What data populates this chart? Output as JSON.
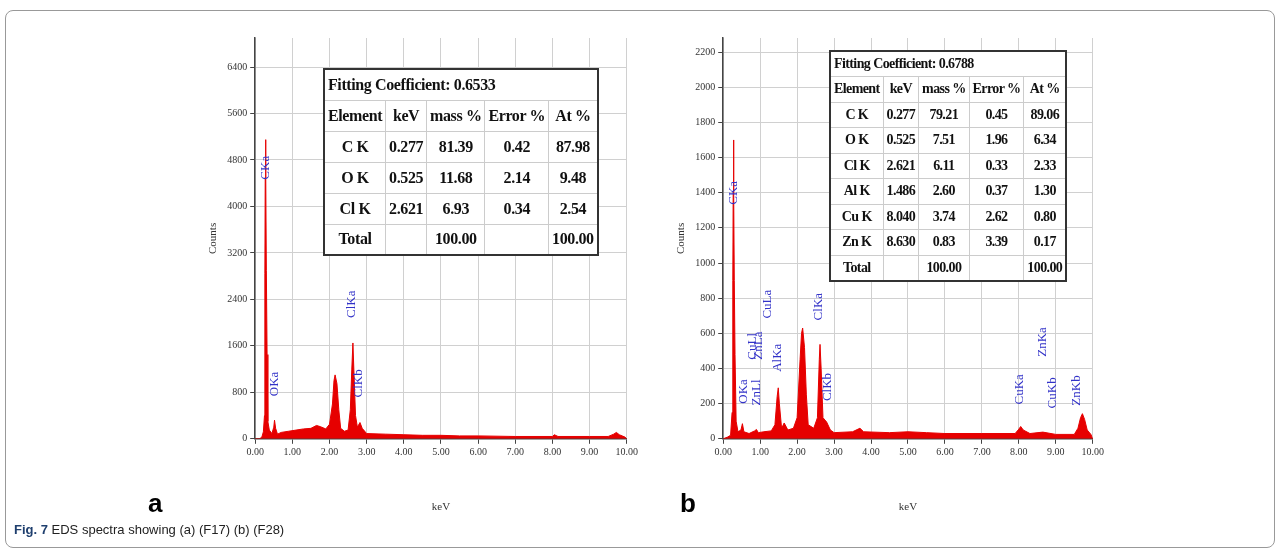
{
  "chart_data": [
    {
      "type": "area",
      "xlabel": "keV",
      "ylabel": "Counts",
      "xlim": [
        0,
        10
      ],
      "ylim": [
        0,
        6900
      ],
      "xticks": [
        {
          "value": 0,
          "label": "0.00"
        },
        {
          "value": 1,
          "label": "1.00"
        },
        {
          "value": 2,
          "label": "2.00"
        },
        {
          "value": 3,
          "label": "3.00"
        },
        {
          "value": 4,
          "label": "4.00"
        },
        {
          "value": 5,
          "label": "5.00"
        },
        {
          "value": 6,
          "label": "6.00"
        },
        {
          "value": 7,
          "label": "7.00"
        },
        {
          "value": 8,
          "label": "8.00"
        },
        {
          "value": 9,
          "label": "9.00"
        },
        {
          "value": 10,
          "label": "10.00"
        }
      ],
      "yticks": [
        0,
        800,
        1600,
        2400,
        3200,
        4000,
        4800,
        5600,
        6400
      ],
      "grid": true,
      "series": [
        {
          "color": "#e60000",
          "x": [
            0,
            0.12,
            0.18,
            0.22,
            0.25,
            0.26,
            0.27,
            0.277,
            0.29,
            0.3,
            0.32,
            0.34,
            0.38,
            0.45,
            0.5,
            0.52,
            0.55,
            0.6,
            0.7,
            0.9,
            1.1,
            1.3,
            1.5,
            1.65,
            1.75,
            1.9,
            2.0,
            2.08,
            2.12,
            2.15,
            2.2,
            2.25,
            2.3,
            2.4,
            2.5,
            2.56,
            2.6,
            2.63,
            2.66,
            2.7,
            2.75,
            2.82,
            2.88,
            3.0,
            3.5,
            4.0,
            4.5,
            5.0,
            5.5,
            6.0,
            7.0,
            8.0,
            8.05,
            8.15,
            9.0,
            9.5,
            9.65,
            9.72,
            9.8,
            9.95,
            10
          ],
          "values": [
            0,
            0,
            30,
            120,
            400,
            2850,
            4500,
            5150,
            4600,
            2900,
            1450,
            300,
            150,
            90,
            200,
            320,
            180,
            80,
            110,
            130,
            150,
            170,
            180,
            230,
            210,
            170,
            250,
            600,
            1000,
            1100,
            950,
            500,
            180,
            130,
            150,
            500,
            1200,
            1650,
            1100,
            400,
            200,
            280,
            180,
            90,
            80,
            70,
            60,
            60,
            50,
            50,
            40,
            40,
            70,
            40,
            40,
            40,
            80,
            110,
            70,
            30,
            0
          ]
        }
      ],
      "annotations": [
        "a",
        "Fitting Coefficient: 0.6533",
        "Element\tkeV\tmass %\tError %\tAt %",
        "C K\t0.277\t81.39\t0.42\t87.98",
        "O K\t0.525\t11.68\t2.14\t9.48",
        "Cl K\t2.621\t6.93\t0.34\t2.54",
        "Total\t\t100.00\t\t100.00",
        {
          "text": "CKa",
          "x": 0.277,
          "y": 5150
        },
        {
          "text": "OKa",
          "x": 0.52,
          "y": 320
        },
        {
          "text": "ClKa",
          "x": 2.63,
          "y": 1650
        },
        {
          "text": "ClKb",
          "x": 2.82,
          "y": 280
        }
      ]
    },
    {
      "type": "area",
      "xlabel": "keV",
      "ylabel": "Counts",
      "xlim": [
        0,
        10
      ],
      "ylim": [
        0,
        2280
      ],
      "xticks": [
        {
          "value": 0,
          "label": "0.00"
        },
        {
          "value": 1,
          "label": "1.00"
        },
        {
          "value": 2,
          "label": "2.00"
        },
        {
          "value": 3,
          "label": "3.00"
        },
        {
          "value": 4,
          "label": "4.00"
        },
        {
          "value": 5,
          "label": "5.00"
        },
        {
          "value": 6,
          "label": "6.00"
        },
        {
          "value": 7,
          "label": "7.00"
        },
        {
          "value": 8,
          "label": "8.00"
        },
        {
          "value": 9,
          "label": "9.00"
        },
        {
          "value": 10,
          "label": "10.00"
        }
      ],
      "yticks": [
        0,
        200,
        400,
        600,
        800,
        1000,
        1200,
        1400,
        1600,
        1800,
        2000,
        2200
      ],
      "grid": true,
      "series": [
        {
          "color": "#e60000",
          "x": [
            0,
            0.12,
            0.2,
            0.24,
            0.26,
            0.27,
            0.277,
            0.29,
            0.3,
            0.32,
            0.35,
            0.4,
            0.48,
            0.52,
            0.56,
            0.7,
            0.85,
            0.9,
            0.95,
            1.1,
            1.3,
            1.4,
            1.46,
            1.49,
            1.52,
            1.58,
            1.65,
            1.75,
            1.9,
            2.0,
            2.08,
            2.12,
            2.15,
            2.2,
            2.25,
            2.3,
            2.45,
            2.55,
            2.6,
            2.62,
            2.65,
            2.7,
            2.8,
            2.9,
            3.0,
            3.5,
            3.7,
            3.8,
            4.5,
            5.0,
            5.5,
            6.0,
            7.0,
            7.9,
            8.0,
            8.05,
            8.12,
            8.3,
            8.65,
            9.0,
            9.5,
            9.6,
            9.67,
            9.72,
            9.78,
            9.85,
            9.95,
            10
          ],
          "values": [
            0,
            10,
            20,
            150,
            900,
            1400,
            1700,
            1400,
            900,
            480,
            100,
            40,
            50,
            86,
            40,
            30,
            45,
            53,
            35,
            40,
            45,
            80,
            240,
            290,
            200,
            60,
            90,
            50,
            60,
            120,
            450,
            600,
            630,
            520,
            250,
            80,
            60,
            120,
            450,
            537,
            400,
            120,
            95,
            50,
            35,
            40,
            60,
            40,
            35,
            40,
            35,
            30,
            30,
            30,
            55,
            70,
            50,
            30,
            38,
            25,
            25,
            60,
            120,
            143,
            110,
            50,
            25,
            0
          ]
        }
      ],
      "annotations": [
        "b",
        "CuLl",
        "ZnLa",
        "CuLa",
        "ZnKa",
        "Fitting Coefficient: 0.6788",
        "Element\tkeV\tmass %\tError %\tAt %",
        "C K\t0.277\t79.21\t0.45\t89.06",
        "O K\t0.525\t7.51\t1.96\t6.34",
        "Cl K\t2.621\t6.11\t0.33\t2.33",
        "Al K\t1.486\t2.60\t0.37\t1.30",
        "Cu K\t8.040\t3.74\t2.62\t0.80",
        "Zn K\t8.630\t0.83\t3.39\t0.17",
        "Total\t\t100.00\t\t100.00",
        {
          "text": "CKa",
          "x": 0.29,
          "y": 1400
        },
        {
          "text": "OKa",
          "x": 0.52,
          "y": 86
        },
        {
          "text": "ZnLl",
          "x": 0.9,
          "y": 53
        },
        {
          "text": "AlKa",
          "x": 1.49,
          "y": 290
        },
        {
          "text": "ClKa",
          "x": 2.62,
          "y": 537
        },
        {
          "text": "ClKb",
          "x": 2.8,
          "y": 95
        },
        {
          "text": "CuKa",
          "x": 8.05,
          "y": 70
        },
        {
          "text": "CuKb",
          "x": 9.0,
          "y": 25
        },
        {
          "text": "ZnKb",
          "x": 9.72,
          "y": 143
        }
      ]
    },
    {
      "type": "other",
      "title": "Fig. 7",
      "subtitle": "EDS spectra showing (a) (F17) (b) (F28)"
    }
  ]
}
